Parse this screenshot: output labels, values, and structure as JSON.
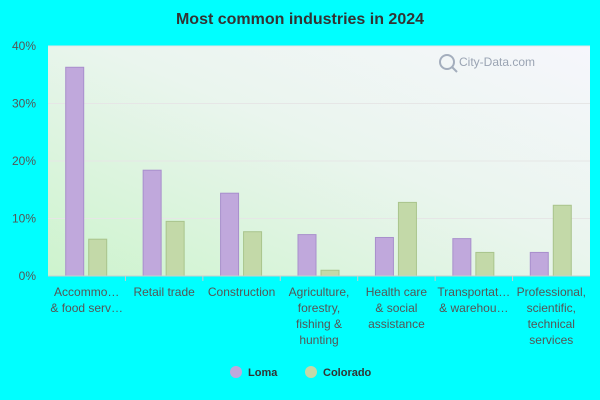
{
  "chart_data": {
    "type": "bar",
    "title": "Most common industries in 2024",
    "categories": [
      [
        "Accommo…",
        "& food serv…"
      ],
      [
        "Retail trade"
      ],
      [
        "Construction"
      ],
      [
        "Agriculture,",
        "forestry,",
        "fishing &",
        "hunting"
      ],
      [
        "Health care",
        "& social",
        "assistance"
      ],
      [
        "Transportat…",
        "& warehou…"
      ],
      [
        "Professional,",
        "scientific,",
        "technical",
        "services"
      ]
    ],
    "series": [
      {
        "name": "Loma",
        "values": [
          36.3,
          18.4,
          14.4,
          7.2,
          6.7,
          6.5,
          4.1
        ]
      },
      {
        "name": "Colorado",
        "values": [
          6.4,
          9.5,
          7.7,
          1.0,
          12.8,
          4.1,
          12.3
        ]
      }
    ],
    "yticks": [
      "0%",
      "10%",
      "20%",
      "30%",
      "40%"
    ],
    "ylim": [
      0,
      40
    ],
    "grid": true,
    "legend_position": "bottom",
    "watermark": "City-Data.com"
  },
  "colors": {
    "background": "#00ffff",
    "Loma": "#c0a8dc",
    "Colorado": "#c3d9a8",
    "Loma_stroke": "#a88fcc",
    "Colorado_stroke": "#a9c48c"
  }
}
